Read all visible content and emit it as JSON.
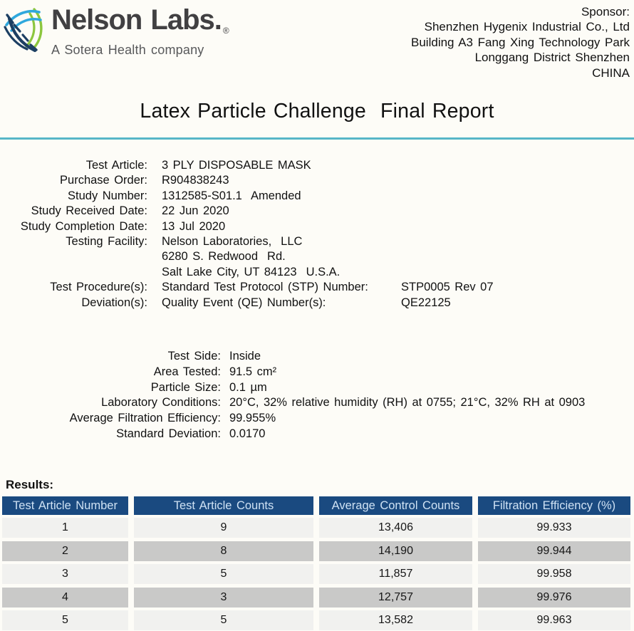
{
  "logo": {
    "wordmark": "Nelson Labs.",
    "registered_mark": "®",
    "tagline": "A Sotera Health company"
  },
  "sponsor": {
    "label": "Sponsor:",
    "lines": [
      "Shenzhen Hygenix Industrial Co., Ltd",
      "Building A3 Fang Xing Technology Park",
      "Longgang District Shenzhen",
      "CHINA"
    ]
  },
  "title": "Latex Particle Challenge  Final Report",
  "details": {
    "rows": [
      {
        "label": "Test Article:",
        "value": "3 PLY DISPOSABLE MASK"
      },
      {
        "label": "Purchase Order:",
        "value": "R904838243"
      },
      {
        "label": "Study Number:",
        "value": "1312585-S01.1  Amended"
      },
      {
        "label": "Study Received Date:",
        "value": "22 Jun 2020"
      },
      {
        "label": "Study Completion Date:",
        "value": "13 Jul 2020"
      },
      {
        "label": "Testing Facility:",
        "value": "Nelson Laboratories,  LLC"
      },
      {
        "label": "",
        "value": "6280 S. Redwood  Rd."
      },
      {
        "label": "",
        "value": "Salt Lake City, UT 84123  U.S.A."
      },
      {
        "label": "Test Procedure(s):",
        "value": "Standard Test Protocol (STP) Number:",
        "value2": "STP0005 Rev 07"
      },
      {
        "label": "Deviation(s):",
        "value": "Quality Event (QE) Number(s):",
        "value2": "QE22125"
      }
    ]
  },
  "parameters": {
    "rows": [
      {
        "label": "Test Side:",
        "value": "Inside"
      },
      {
        "label": "Area Tested:",
        "value": "91.5 cm²"
      },
      {
        "label": "Particle Size:",
        "value": "0.1 µm"
      },
      {
        "label": "Laboratory Conditions:",
        "value": "20°C, 32% relative humidity (RH) at 0755; 21°C, 32% RH at 0903"
      },
      {
        "label": "Average Filtration Efficiency:",
        "value": "99.955%"
      },
      {
        "label": "Standard Deviation:",
        "value": "0.0170"
      }
    ]
  },
  "results": {
    "label": "Results:",
    "headers": [
      "Test Article Number",
      "Test Article Counts",
      "Average Control Counts",
      "Filtration Efficiency (%)"
    ],
    "rows": [
      [
        "1",
        "9",
        "13,406",
        "99.933"
      ],
      [
        "2",
        "8",
        "14,190",
        "99.944"
      ],
      [
        "3",
        "5",
        "11,857",
        "99.958"
      ],
      [
        "4",
        "3",
        "12,757",
        "99.976"
      ],
      [
        "5",
        "5",
        "13,582",
        "99.963"
      ]
    ]
  },
  "colors": {
    "table_header_bg": "#1a4a80",
    "table_header_text": "#cfe2f4",
    "row_light": "#f1f1ef",
    "row_dark": "#c9c9c8",
    "divider_teal": "#57b6c8",
    "logo_blue": "#2fa8dd",
    "logo_navy": "#1d3f63",
    "logo_green": "#8cc63e"
  }
}
